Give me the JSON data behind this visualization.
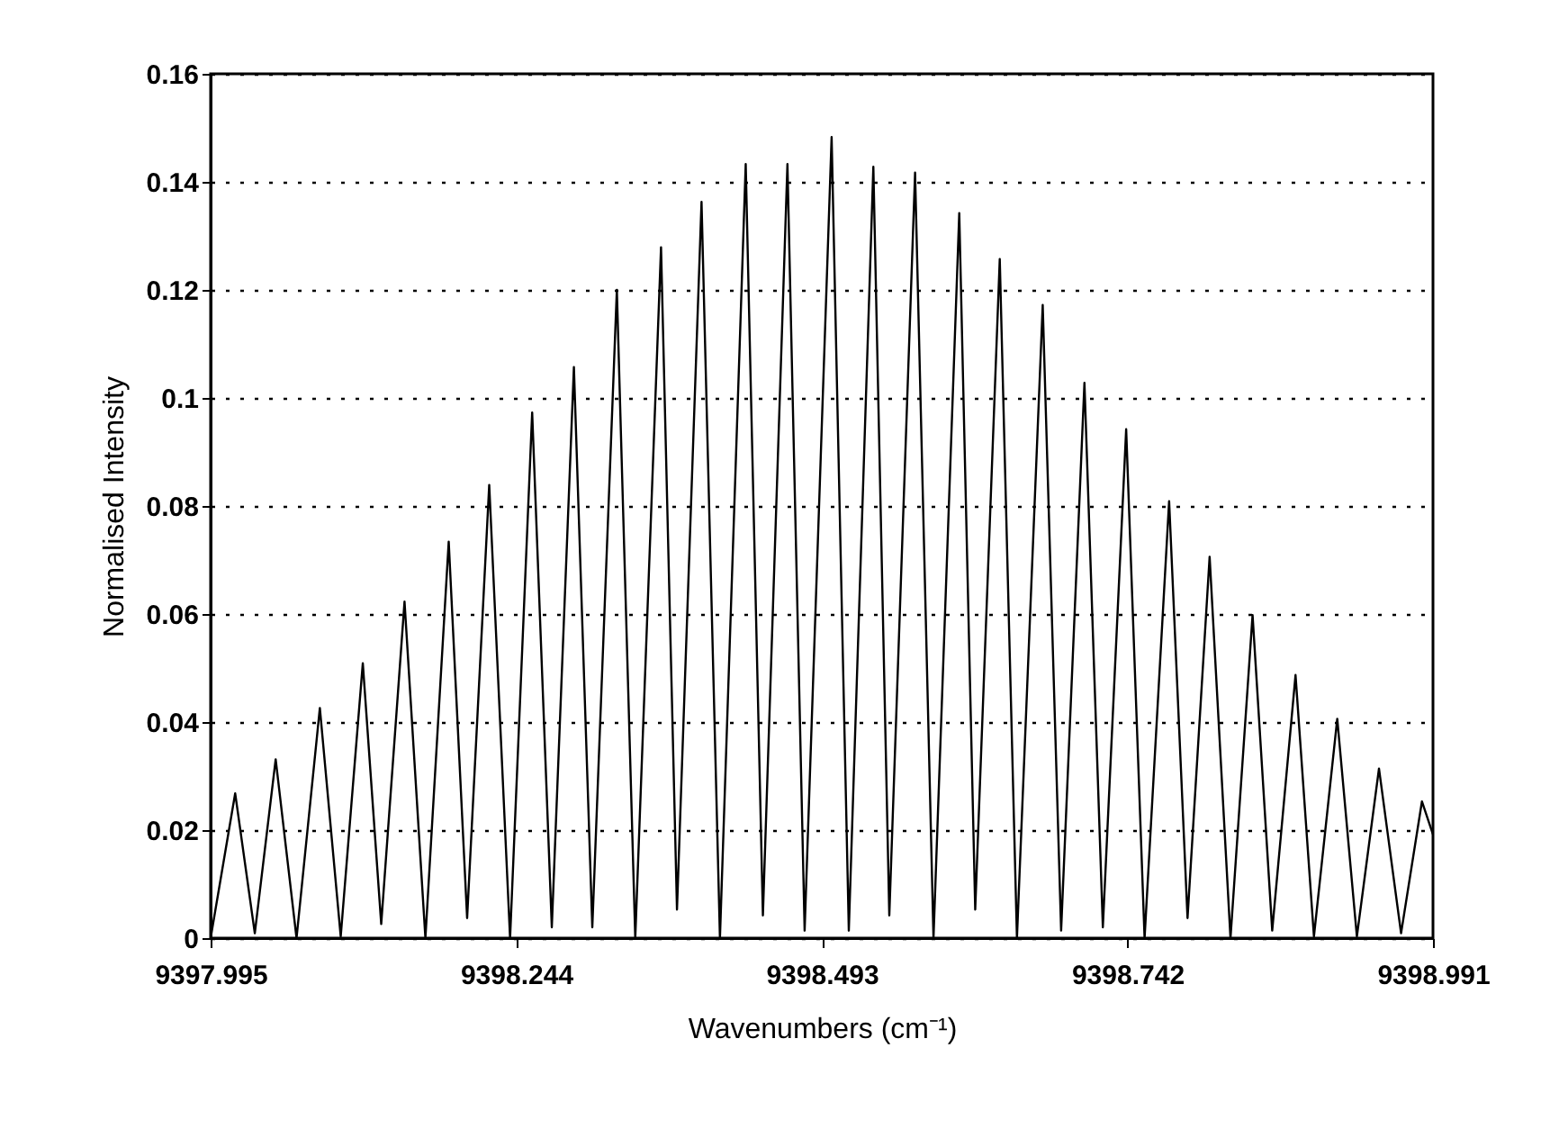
{
  "chart_data": {
    "type": "line",
    "xlabel": "Wavenumbers (cm⁻¹)",
    "ylabel": "Normalised Intensity",
    "xlim": [
      9397.995,
      9398.991
    ],
    "ylim": [
      0,
      0.16
    ],
    "xticks": [
      9397.995,
      9398.244,
      9398.493,
      9398.742,
      9398.991
    ],
    "yticks": [
      0,
      0.02,
      0.04,
      0.06,
      0.08,
      0.1,
      0.12,
      0.14,
      0.16
    ],
    "grid": "y",
    "marker": "none",
    "line_style": "solid",
    "series": [
      {
        "color": "#000000",
        "x": [
          9397.995,
          9398.015,
          9398.031,
          9398.048,
          9398.065,
          9398.084,
          9398.101,
          9398.119,
          9398.134,
          9398.153,
          9398.17,
          9398.189,
          9398.204,
          9398.222,
          9398.239,
          9398.257,
          9398.273,
          9398.291,
          9398.306,
          9398.326,
          9398.341,
          9398.362,
          9398.375,
          9398.395,
          9398.41,
          9398.431,
          9398.445,
          9398.465,
          9398.479,
          9398.501,
          9398.515,
          9398.535,
          9398.548,
          9398.569,
          9398.584,
          9398.605,
          9398.618,
          9398.638,
          9398.652,
          9398.673,
          9398.688,
          9398.707,
          9398.722,
          9398.741,
          9398.756,
          9398.776,
          9398.791,
          9398.809,
          9398.826,
          9398.844,
          9398.86,
          9398.879,
          9398.894,
          9398.913,
          9398.929,
          9398.947,
          9398.965,
          9398.982,
          9398.991
        ],
        "values": [
          0,
          0.0268,
          0.0009,
          0.0331,
          0,
          0.0426,
          0.0003,
          0.0509,
          0.0026,
          0.0623,
          0,
          0.0734,
          0.0037,
          0.0839,
          0,
          0.0973,
          0.002,
          0.1057,
          0.002,
          0.12,
          0,
          0.1279,
          0.0053,
          0.1363,
          0,
          0.1433,
          0.0042,
          0.1433,
          0.0014,
          0.1483,
          0.0014,
          0.1428,
          0.0042,
          0.1417,
          0,
          0.1342,
          0.0053,
          0.1257,
          0,
          0.1172,
          0.0014,
          0.1028,
          0.002,
          0.0942,
          0,
          0.0809,
          0.0037,
          0.0706,
          0,
          0.0598,
          0.0014,
          0.0487,
          0.0003,
          0.0406,
          0.0003,
          0.0314,
          0.0009,
          0.0253,
          0.0192
        ]
      }
    ]
  }
}
